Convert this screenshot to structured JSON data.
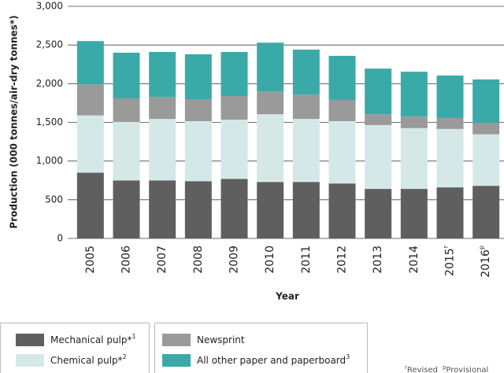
{
  "chart_data": {
    "type": "stacked-bar",
    "y_label": "Production (000 tonnes/air-dry tonnes*)",
    "x_label": "Year",
    "categories": [
      "2005",
      "2006",
      "2007",
      "2008",
      "2009",
      "2010",
      "2011",
      "2012",
      "2013",
      "2014",
      "2015",
      "2016"
    ],
    "superscripts": [
      {
        "category": "2015",
        "text": "r"
      },
      {
        "category": "2016",
        "text": "p"
      }
    ],
    "series": [
      {
        "name": "Mechanical pulp*",
        "note": "1",
        "color": "#5f5f5f",
        "values": [
          850,
          750,
          750,
          740,
          770,
          730,
          730,
          710,
          640,
          640,
          660,
          680
        ]
      },
      {
        "name": "Chemical pulp*",
        "note": "2",
        "color": "#d5e8e8",
        "values": [
          740,
          755,
          795,
          775,
          765,
          875,
          815,
          805,
          825,
          785,
          755,
          665
        ]
      },
      {
        "name": "Newsprint",
        "color": "#9a9a9a",
        "values": [
          400,
          305,
          285,
          285,
          305,
          295,
          315,
          275,
          140,
          150,
          140,
          150
        ]
      },
      {
        "name": "All other paper and paperboard",
        "note": "3",
        "color": "#3aaaa8",
        "values": [
          560,
          590,
          580,
          580,
          570,
          630,
          580,
          570,
          590,
          580,
          550,
          560
        ]
      }
    ],
    "ylim": [
      0,
      3000
    ],
    "yticks": [
      0,
      500,
      {
        "value": 1000,
        "label": "1,000"
      },
      {
        "value": 1500,
        "label": "1,500"
      },
      {
        "value": 2000,
        "label": "2,000"
      },
      {
        "value": 2500,
        "label": "2,500"
      },
      {
        "value": 3000,
        "label": "3,000"
      }
    ],
    "grid": true,
    "footnotes": [
      {
        "symbol": "r",
        "text": "Revised"
      },
      {
        "symbol": "p",
        "text": "Provisional"
      }
    ]
  }
}
